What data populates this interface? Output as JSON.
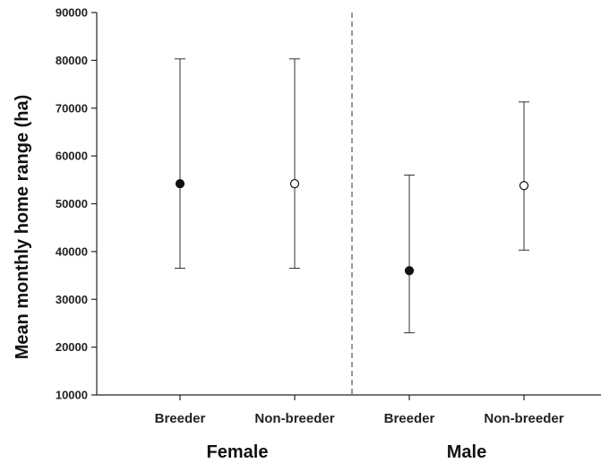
{
  "chart_data": {
    "type": "scatter",
    "ylabel": "Mean monthly home range (ha)",
    "ylim": [
      10000,
      90000
    ],
    "yticks": [
      10000,
      20000,
      30000,
      40000,
      50000,
      60000,
      70000,
      80000,
      90000
    ],
    "yticklabels": [
      "10000",
      "20000",
      "30000",
      "40000",
      "50000",
      "60000",
      "70000",
      "80000",
      "90000"
    ],
    "categories": [
      "Breeder",
      "Non-breeder",
      "Breeder",
      "Non-breeder"
    ],
    "groups": [
      {
        "label": "Female",
        "categories": [
          "Breeder",
          "Non-breeder"
        ]
      },
      {
        "label": "Male",
        "categories": [
          "Breeder",
          "Non-breeder"
        ]
      }
    ],
    "points": [
      {
        "group": "Female",
        "category": "Breeder",
        "mean": 54200,
        "lower": 36500,
        "upper": 80300,
        "marker": "filled"
      },
      {
        "group": "Female",
        "category": "Non-breeder",
        "mean": 54200,
        "lower": 36500,
        "upper": 80300,
        "marker": "open"
      },
      {
        "group": "Male",
        "category": "Breeder",
        "mean": 36000,
        "lower": 23000,
        "upper": 56000,
        "marker": "filled"
      },
      {
        "group": "Male",
        "category": "Non-breeder",
        "mean": 53800,
        "lower": 40300,
        "upper": 71300,
        "marker": "open"
      }
    ],
    "divider": "dashed line between Female and Male groups",
    "grid": false,
    "legend": "none"
  }
}
